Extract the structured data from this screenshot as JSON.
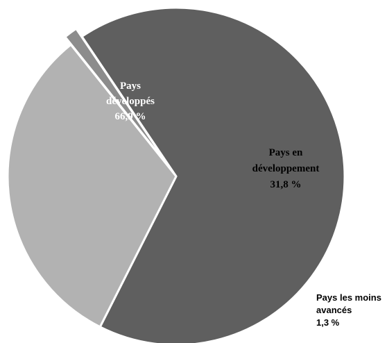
{
  "chart_data": {
    "type": "pie",
    "slices": [
      {
        "name": "Pays développés",
        "label_lines": [
          "Pays",
          "développés",
          "66,9 %"
        ],
        "value": 66.9,
        "color": "#5f5f5f",
        "label_color": "#ffffff"
      },
      {
        "name": "Pays en développement",
        "label_lines": [
          "Pays en",
          "développement",
          "31,8 %"
        ],
        "value": 31.8,
        "color": "#b2b2b2",
        "label_color": "#000000"
      },
      {
        "name": "Pays les moins avancés",
        "label_lines": [
          "Pays les moins",
          "avancés",
          "1,3 %"
        ],
        "value": 1.3,
        "color": "#8c8c8c",
        "label_color": "#000000",
        "exploded": true
      }
    ],
    "start_angle_deg": 236,
    "direction": "clockwise",
    "legend": "none",
    "title": ""
  }
}
